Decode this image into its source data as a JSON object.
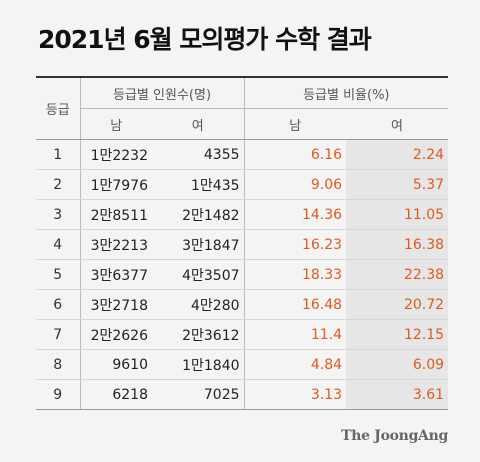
{
  "title": "2021년 6월 모의평가 수학 결과",
  "table": {
    "grade_header": "등급",
    "count_header": "등급별 인원수(명)",
    "ratio_header": "등급별 비율(%)",
    "male": "남",
    "female": "여",
    "rows": [
      {
        "grade": "1",
        "male_count": "1만2232",
        "female_count": "4355",
        "male_ratio": "6.16",
        "female_ratio": "2.24"
      },
      {
        "grade": "2",
        "male_count": "1만7976",
        "female_count": "1만435",
        "male_ratio": "9.06",
        "female_ratio": "5.37"
      },
      {
        "grade": "3",
        "male_count": "2만8511",
        "female_count": "2만1482",
        "male_ratio": "14.36",
        "female_ratio": "11.05"
      },
      {
        "grade": "4",
        "male_count": "3만2213",
        "female_count": "3만1847",
        "male_ratio": "16.23",
        "female_ratio": "16.38"
      },
      {
        "grade": "5",
        "male_count": "3만6377",
        "female_count": "4만3507",
        "male_ratio": "18.33",
        "female_ratio": "22.38"
      },
      {
        "grade": "6",
        "male_count": "3만2718",
        "female_count": "4만280",
        "male_ratio": "16.48",
        "female_ratio": "20.72"
      },
      {
        "grade": "7",
        "male_count": "2만2626",
        "female_count": "2만3612",
        "male_ratio": "11.4",
        "female_ratio": "12.15"
      },
      {
        "grade": "8",
        "male_count": "9610",
        "female_count": "1만1840",
        "male_ratio": "4.84",
        "female_ratio": "6.09"
      },
      {
        "grade": "9",
        "male_count": "6218",
        "female_count": "7025",
        "male_ratio": "3.13",
        "female_ratio": "3.61"
      }
    ]
  },
  "source": "The JoongAng",
  "colors": {
    "ratio_text": "#e05a1e",
    "shade": "#e6e6e6",
    "background": "#f4f4f4"
  }
}
